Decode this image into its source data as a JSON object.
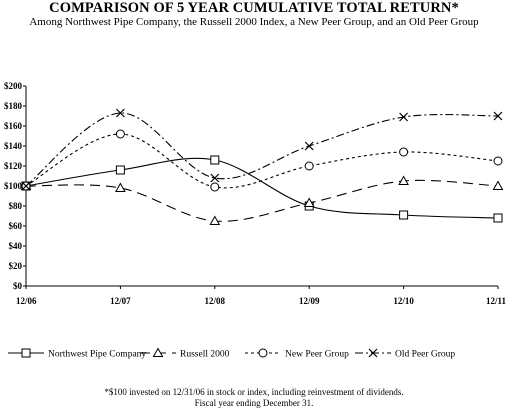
{
  "chart_data": {
    "type": "line",
    "title": "COMPARISON OF 5 YEAR CUMULATIVE TOTAL RETURN*",
    "subtitle": "Among Northwest Pipe Company, the Russell 2000 Index, a New Peer Group, and an Old  Peer Group",
    "categories": [
      "12/06",
      "12/07",
      "12/08",
      "12/09",
      "12/10",
      "12/11"
    ],
    "y_ticks": [
      "$0",
      "$20",
      "$40",
      "$60",
      "$80",
      "$100",
      "$120",
      "$140",
      "$160",
      "$180",
      "$200"
    ],
    "ylim": [
      0,
      200
    ],
    "grid": false,
    "legend_position": "bottom",
    "series": [
      {
        "name": "Northwest Pipe Company",
        "marker": "square",
        "dash": "solid",
        "values": [
          100,
          116,
          126,
          80,
          71,
          68
        ]
      },
      {
        "name": "Russell 2000",
        "marker": "triangle",
        "dash": "long-dash",
        "values": [
          100,
          98,
          65,
          83,
          105,
          100
        ]
      },
      {
        "name": "New Peer Group",
        "marker": "circle",
        "dash": "short-dash",
        "values": [
          100,
          152,
          99,
          120,
          134,
          125
        ]
      },
      {
        "name": "Old Peer Group",
        "marker": "x",
        "dash": "dash-dot",
        "values": [
          100,
          173,
          108,
          140,
          169,
          170
        ]
      }
    ],
    "footnotes": [
      "*$100 invested on 12/31/06 in stock or index, including reinvestment of dividends.",
      "Fiscal year ending December 31."
    ]
  }
}
